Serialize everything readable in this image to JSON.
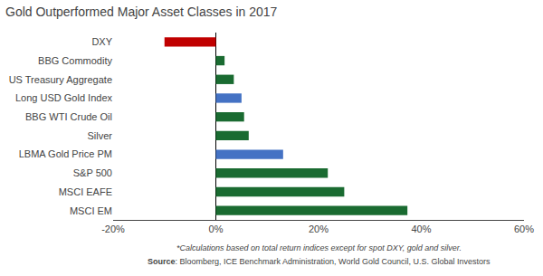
{
  "chart_data": {
    "type": "bar",
    "orientation": "horizontal",
    "title": "Gold Outperformed Major Asset Classes in 2017",
    "categories": [
      "DXY",
      "BBG Commodity",
      "US Treasury Aggregate",
      "Long USD Gold Index",
      "BBG WTI Crude Oil",
      "Silver",
      "LBMA Gold Price PM",
      "S&P 500",
      "MSCI EAFE",
      "MSCI EM"
    ],
    "values": [
      -10.0,
      1.7,
      3.5,
      5.0,
      5.5,
      6.4,
      13.1,
      21.8,
      25.0,
      37.3
    ],
    "colors": [
      "#c00000",
      "#1a6b31",
      "#1a6b31",
      "#4472c4",
      "#1a6b31",
      "#1a6b31",
      "#4472c4",
      "#1a6b31",
      "#1a6b31",
      "#1a6b31"
    ],
    "xlim": [
      -20,
      60
    ],
    "xticks": [
      {
        "value": -20,
        "label": "-20%"
      },
      {
        "value": 0,
        "label": "0%"
      },
      {
        "value": 20,
        "label": "20%"
      },
      {
        "value": 40,
        "label": "40%"
      },
      {
        "value": 60,
        "label": "60%"
      }
    ],
    "grid": false,
    "annotations": [
      "*Calculations based on total return indices except for spot DXY, gold and silver.",
      "Source: Bloomberg, ICE Benchmark Administration, World Gold Council, U.S. Global Investors"
    ]
  }
}
